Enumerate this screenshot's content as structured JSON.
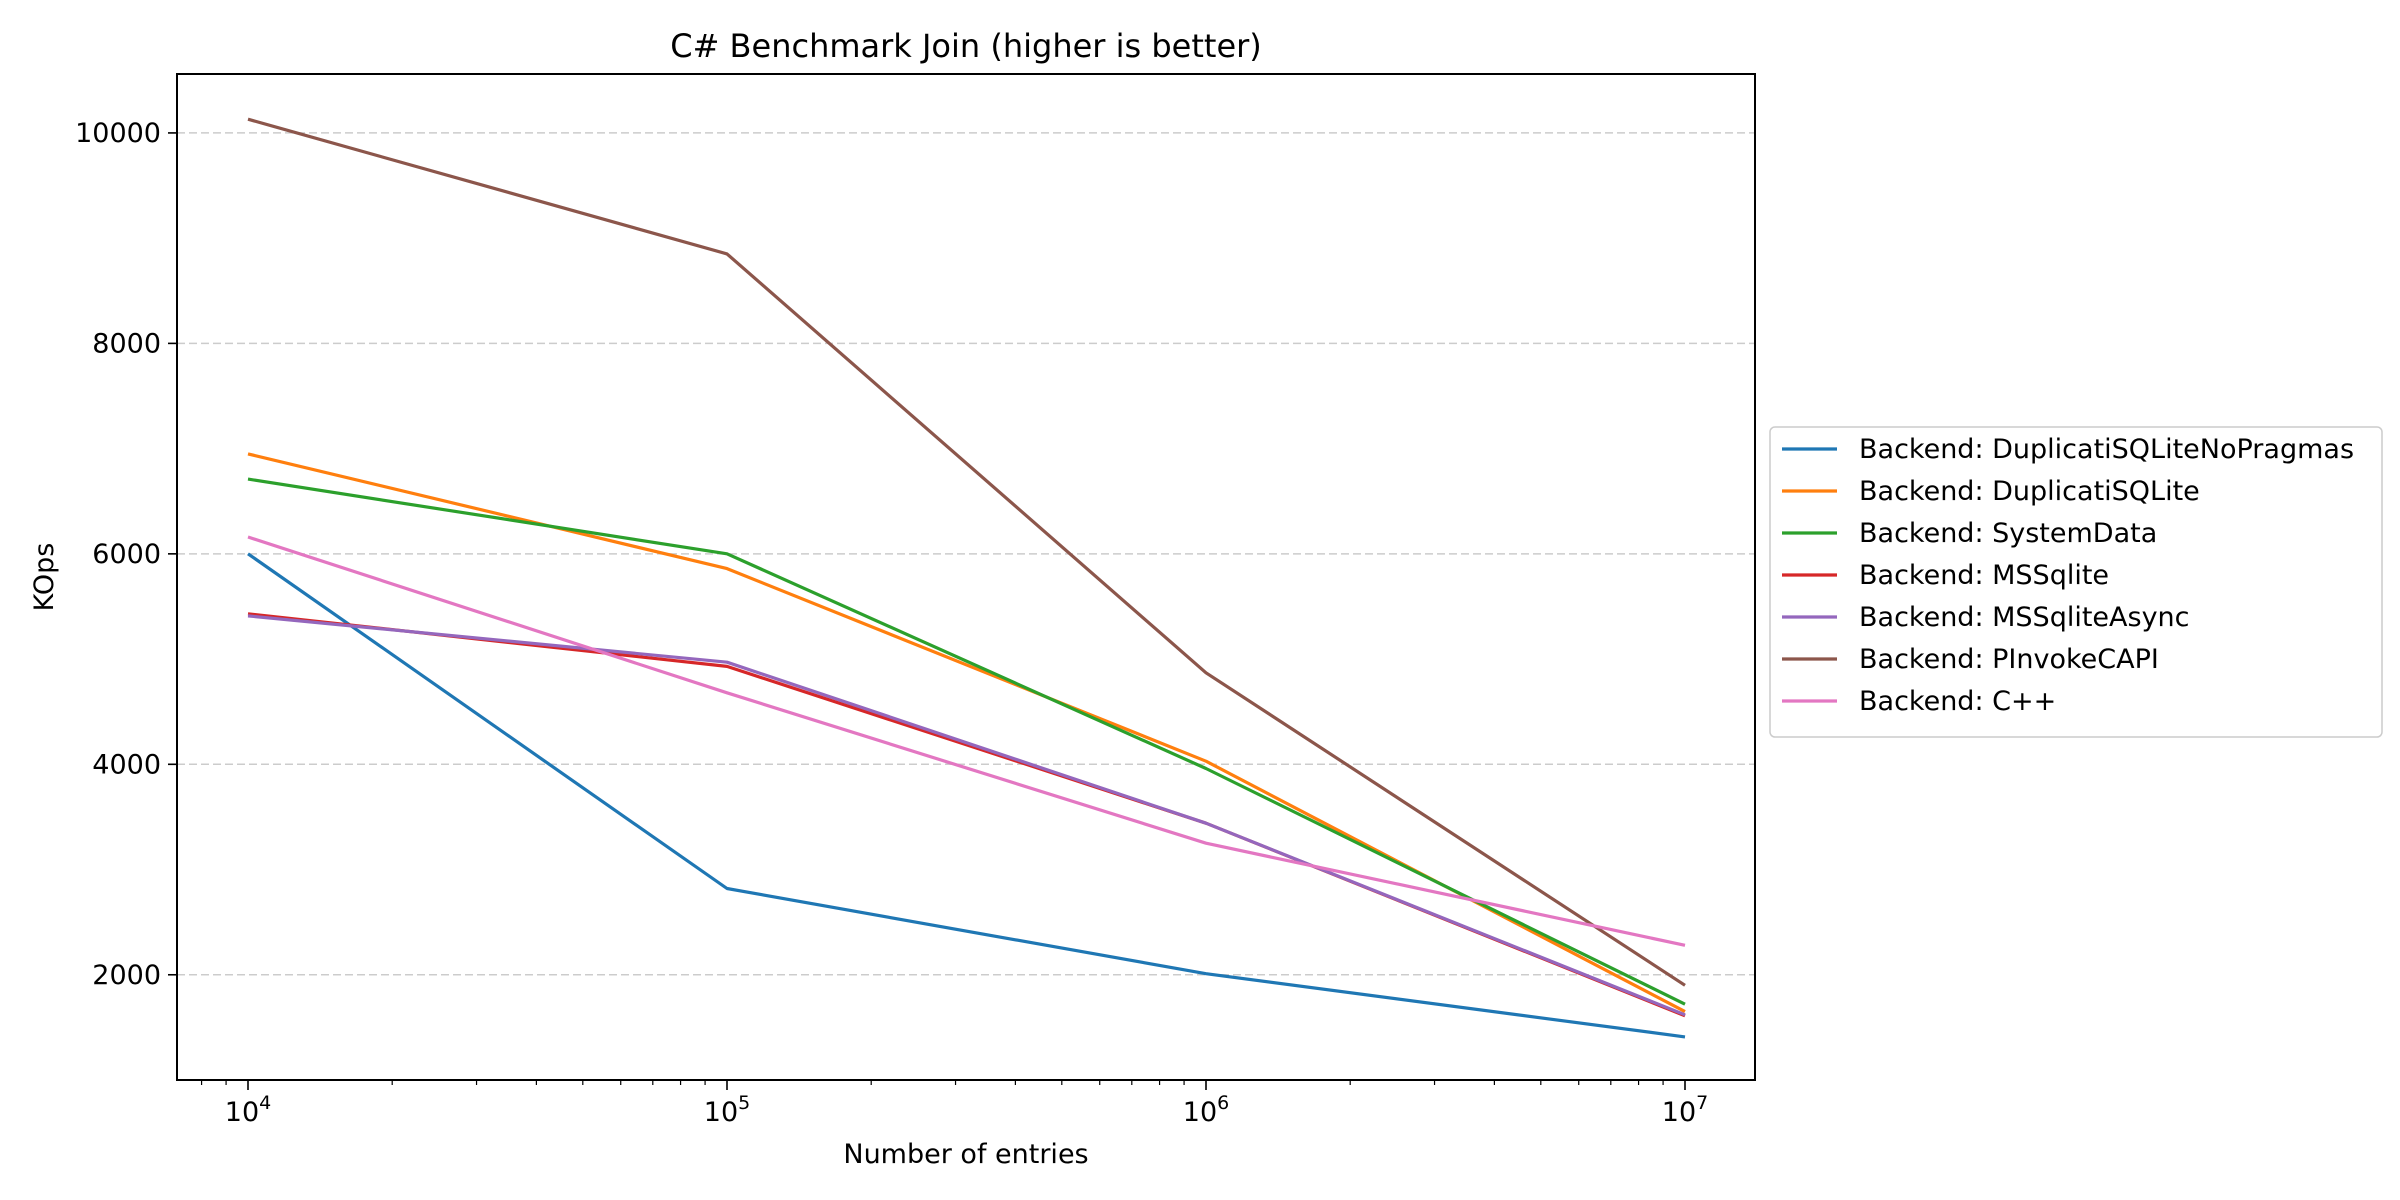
{
  "chart_data": {
    "type": "line",
    "title": "C# Benchmark Join (higher is better)",
    "xlabel": "Number of entries",
    "ylabel": "KOps",
    "x_scale": "log",
    "x": [
      10000,
      100000,
      1000000,
      10000000
    ],
    "x_tick_labels": [
      {
        "base": "10",
        "exp": "4"
      },
      {
        "base": "10",
        "exp": "5"
      },
      {
        "base": "10",
        "exp": "6"
      },
      {
        "base": "10",
        "exp": "7"
      }
    ],
    "y_ticks": [
      2000,
      4000,
      6000,
      8000,
      10000
    ],
    "y_tick_labels": [
      "2000",
      "4000",
      "6000",
      "8000",
      "10000"
    ],
    "ylim": [
      1000,
      10560
    ],
    "grid": "y-dashed",
    "legend_placement": "right-outside",
    "series": [
      {
        "name": "Backend: DuplicatiSQLiteNoPragmas",
        "color": "#1f77b4",
        "values": [
          6000,
          2820,
          2010,
          1410
        ]
      },
      {
        "name": "Backend: DuplicatiSQLite",
        "color": "#ff7f0e",
        "values": [
          6950,
          5860,
          4030,
          1650
        ]
      },
      {
        "name": "Backend: SystemData",
        "color": "#2ca02c",
        "values": [
          6710,
          6000,
          3960,
          1720
        ]
      },
      {
        "name": "Backend: MSSqlite",
        "color": "#d62728",
        "values": [
          5430,
          4930,
          3440,
          1610
        ]
      },
      {
        "name": "Backend: MSSqliteAsync",
        "color": "#9467bd",
        "values": [
          5410,
          4970,
          3440,
          1620
        ]
      },
      {
        "name": "Backend: PInvokeCAPI",
        "color": "#8c564b",
        "values": [
          10130,
          8850,
          4870,
          1900
        ]
      },
      {
        "name": "Backend: C++",
        "color": "#e377c2",
        "values": [
          6160,
          4680,
          3250,
          2280
        ]
      }
    ]
  }
}
